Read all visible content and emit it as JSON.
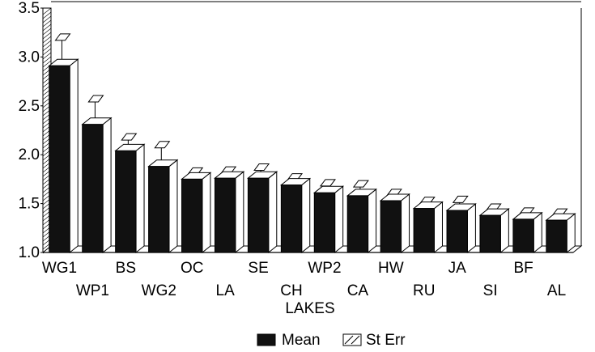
{
  "chart_data": {
    "type": "bar",
    "title": "",
    "xlabel": "LAKES",
    "ylabel": "",
    "ylim": [
      1.0,
      3.5
    ],
    "yticks": [
      "1.0",
      "1.5",
      "2.0",
      "2.5",
      "3.0",
      "3.5"
    ],
    "categories": [
      "WG1",
      "WP1",
      "BS",
      "WG2",
      "OC",
      "LA",
      "SE",
      "CH",
      "WP2",
      "CA",
      "HW",
      "RU",
      "JA",
      "SI",
      "BF",
      "AL"
    ],
    "series": [
      {
        "name": "Mean",
        "values": [
          2.91,
          2.31,
          2.04,
          1.88,
          1.75,
          1.76,
          1.76,
          1.69,
          1.61,
          1.58,
          1.53,
          1.45,
          1.43,
          1.38,
          1.34,
          1.33
        ]
      },
      {
        "name": "St Err",
        "values": [
          0.26,
          0.23,
          0.11,
          0.19,
          0.05,
          0.05,
          0.08,
          0.05,
          0.07,
          0.09,
          0.05,
          0.05,
          0.08,
          0.05,
          0.05,
          0.05
        ]
      }
    ],
    "grid": false,
    "legend": "bottom-center"
  },
  "colors": {
    "mean_fill": "#111111",
    "sterr_fill": "#ffffff",
    "stroke": "#000000"
  }
}
